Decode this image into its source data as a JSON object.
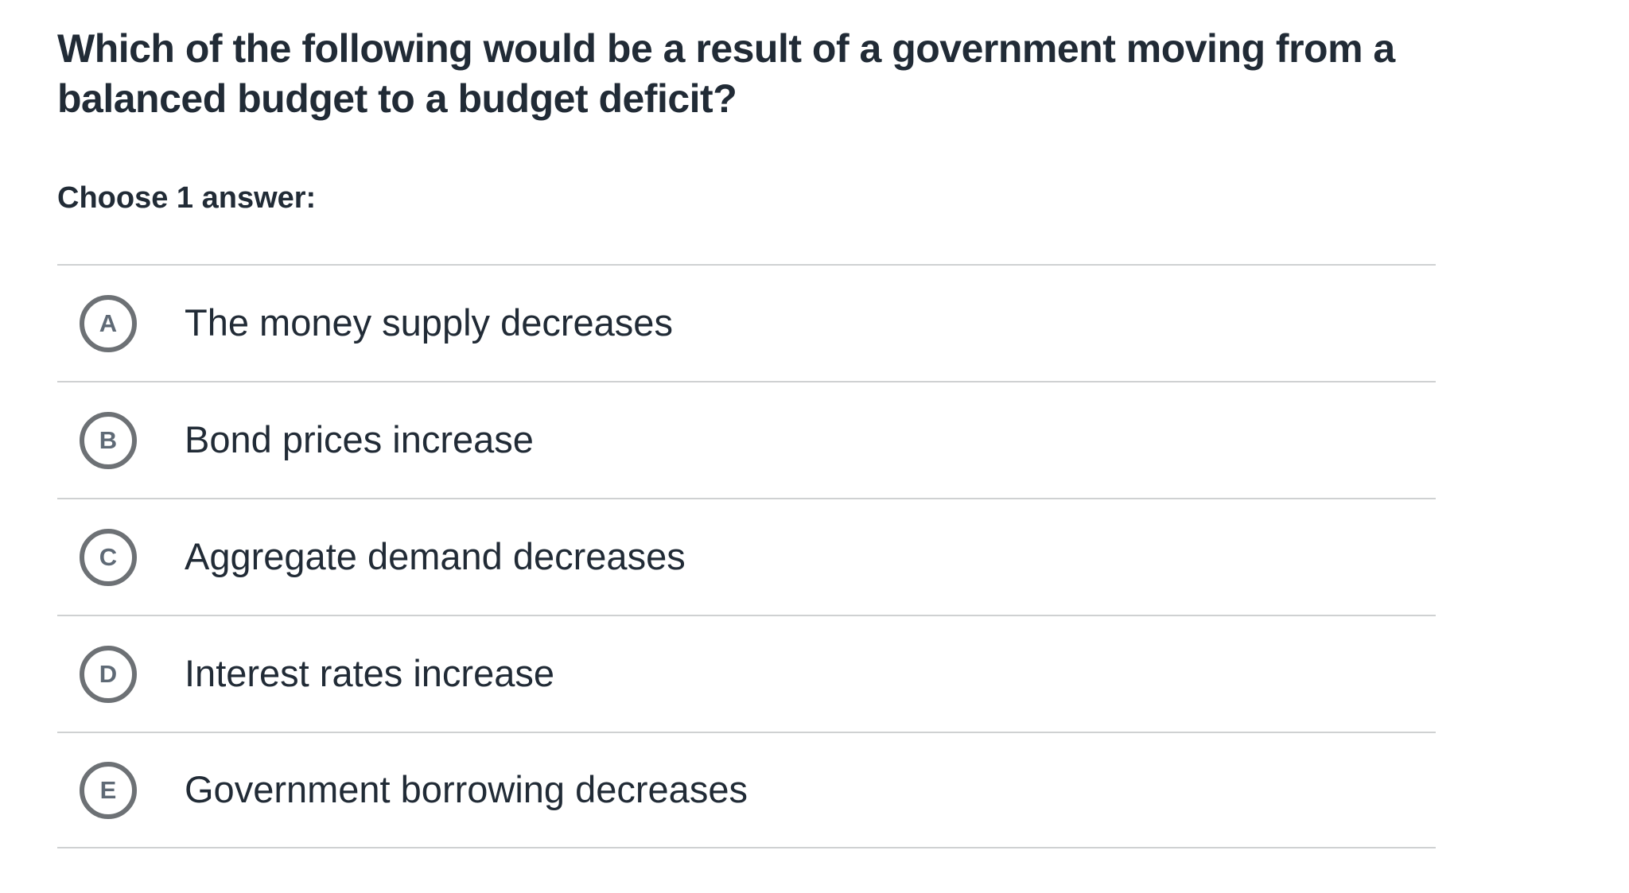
{
  "colors": {
    "background": "#ffffff",
    "text": "#212b36",
    "divider": "#cfd1d2",
    "circle_ring": "#6d7175",
    "circle_letter": "#5f6a76"
  },
  "question": {
    "title": "Which of the following would be a result of a government moving from a balanced budget to a budget deficit?",
    "title_lines": [
      "Which of the following would be a result of a government moving from a",
      "balanced budget to a budget deficit?"
    ],
    "prompt": "Choose 1 answer:"
  },
  "options": [
    {
      "letter": "A",
      "text": "The money supply decreases"
    },
    {
      "letter": "B",
      "text": "Bond prices increase"
    },
    {
      "letter": "C",
      "text": "Aggregate demand decreases"
    },
    {
      "letter": "D",
      "text": "Interest rates increase"
    },
    {
      "letter": "E",
      "text": "Government borrowing decreases"
    }
  ]
}
